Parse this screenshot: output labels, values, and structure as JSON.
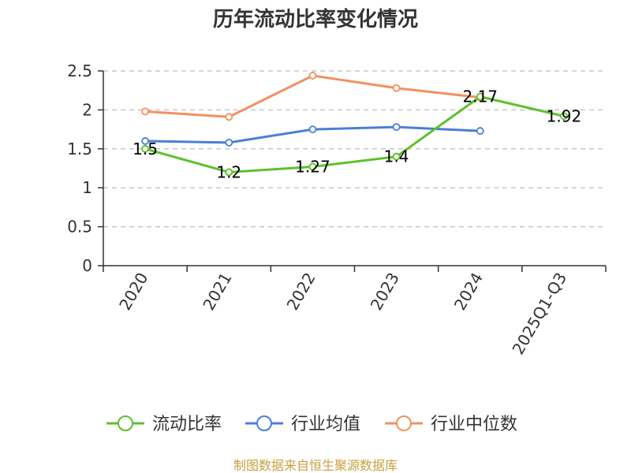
{
  "chart_data": {
    "type": "line",
    "title": "历年流动比率变化情况",
    "categories": [
      "2020",
      "2021",
      "2022",
      "2023",
      "2024",
      "2025Q1-Q3"
    ],
    "ylim": [
      0,
      2.5
    ],
    "yticks": [
      0,
      0.5,
      1,
      1.5,
      2,
      2.5
    ],
    "ytick_labels": [
      "0",
      "0.5",
      "1",
      "1.5",
      "2",
      "2.5"
    ],
    "grid": true,
    "legend_position": "bottom",
    "series": [
      {
        "name": "流动比率",
        "color": "#5cc12b",
        "values": [
          1.5,
          1.2,
          1.27,
          1.4,
          2.17,
          1.92
        ],
        "labels": [
          "1.5",
          "1.2",
          "1.27",
          "1.4",
          "2.17",
          "1.92"
        ]
      },
      {
        "name": "行业均值",
        "color": "#4a7fd8",
        "values": [
          1.6,
          1.58,
          1.75,
          1.78,
          1.73,
          null
        ]
      },
      {
        "name": "行业中位数",
        "color": "#f39060",
        "values": [
          1.98,
          1.91,
          2.44,
          2.28,
          2.16,
          null
        ]
      }
    ],
    "source": "制图数据来自恒生聚源数据库"
  }
}
